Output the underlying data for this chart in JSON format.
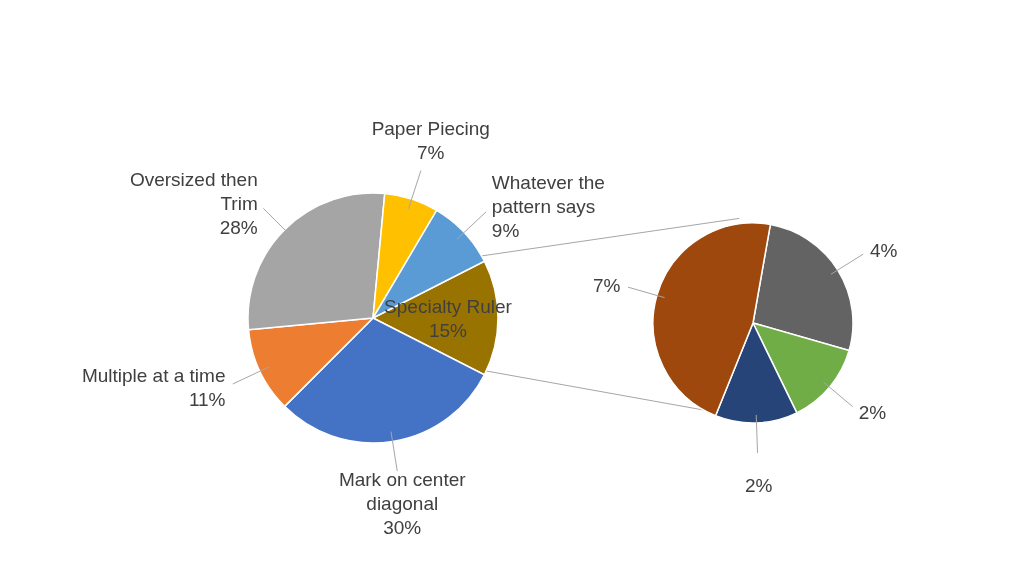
{
  "chart_data": [
    {
      "type": "pie",
      "categories": [
        "Specialty Ruler",
        "Mark on center diagonal",
        "Multiple at a time",
        "Oversized then Trim",
        "Paper Piecing",
        "Whatever the pattern says"
      ],
      "values": [
        15,
        30,
        11,
        28,
        7,
        9
      ],
      "value_labels": [
        "15%",
        "30%",
        "11%",
        "28%",
        "7%",
        "9%"
      ],
      "colors": [
        "#997300",
        "#4472c4",
        "#ed7d31",
        "#a5a5a5",
        "#ffc000",
        "#5b9bd5"
      ]
    },
    {
      "type": "pie",
      "categories": [
        null,
        null,
        null,
        null
      ],
      "values": [
        4,
        2,
        2,
        7
      ],
      "value_labels": [
        "4%",
        "2%",
        "2%",
        "7%"
      ],
      "colors": [
        "#636363",
        "#70ad47",
        "#264478",
        "#9e480e"
      ]
    }
  ]
}
